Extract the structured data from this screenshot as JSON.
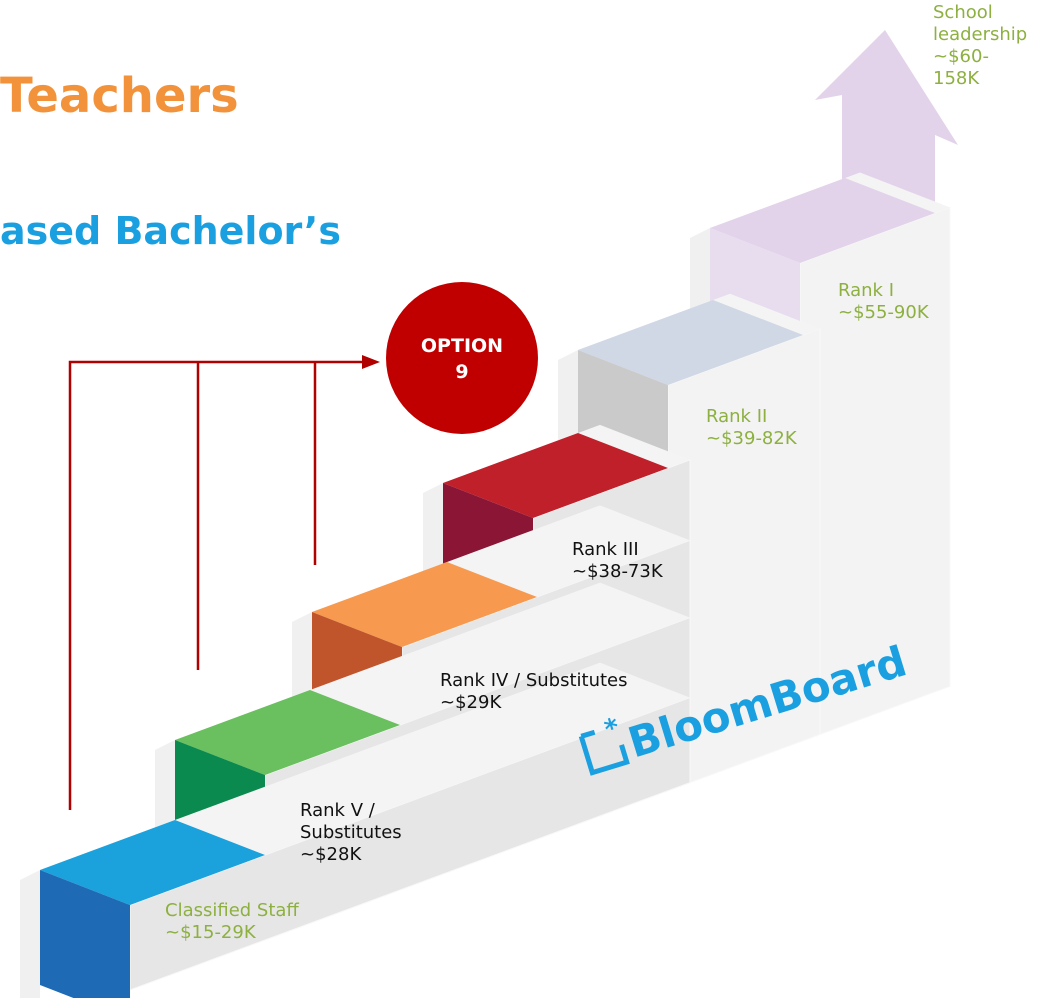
{
  "title": "Teachers",
  "subtitle": "ased Bachelor’s",
  "badge": {
    "line1": "OPTION",
    "line2": "9"
  },
  "steps": [
    {
      "lines": [
        "Classified Staff",
        "~$15-29K"
      ]
    },
    {
      "lines": [
        "Rank V /",
        "Substitutes",
        "~$28K"
      ]
    },
    {
      "lines": [
        "Rank IV / Substitutes",
        "~$29K"
      ]
    },
    {
      "lines": [
        "Rank III",
        "~$38-73K"
      ]
    },
    {
      "lines": [
        "Rank II",
        "~$39-82K"
      ]
    },
    {
      "lines": [
        "Rank I",
        "~$55-90K"
      ]
    },
    {
      "lines": [
        "School",
        "leadership",
        "~$60-",
        "158K"
      ]
    }
  ],
  "logo": "BloomBoard"
}
